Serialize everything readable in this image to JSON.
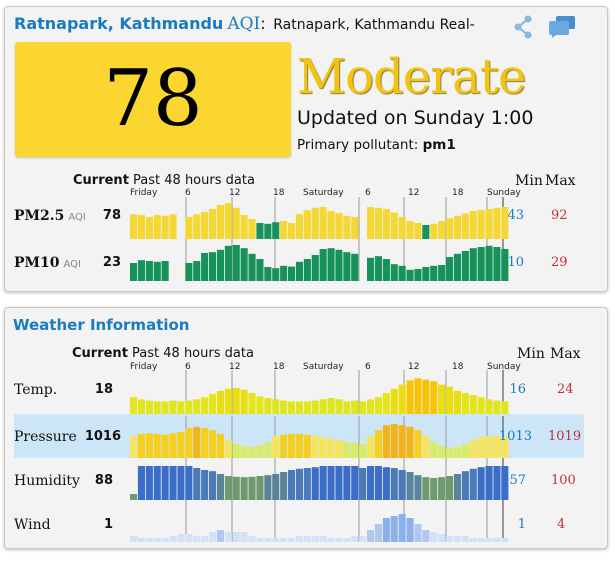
{
  "header": {
    "city": "Ratnapark, Kathmandu",
    "aqi_word": "AQI",
    "colon": ":",
    "station": "Ratnapark, Kathmandu Real-"
  },
  "aqi": {
    "value": "78",
    "level": "Moderate",
    "updated": "Updated on Sunday 1:00",
    "pollutant_label": "Primary pollutant:",
    "pollutant_value": "pm1",
    "box_color": "#fcd630"
  },
  "table_headers": {
    "current": "Current",
    "past": "Past 48 hours data",
    "min": "Min",
    "max": "Max"
  },
  "time_ticks": [
    "Friday",
    "6",
    "12",
    "18",
    "Saturday",
    "6",
    "12",
    "18",
    "Sunday"
  ],
  "air": [
    {
      "name": "PM2.5",
      "unit": "AQI",
      "current": "78",
      "min": "43",
      "max": "92",
      "values": [
        62,
        60,
        55,
        60,
        58,
        62,
        0,
        55,
        62,
        68,
        75,
        85,
        90,
        78,
        60,
        50,
        40,
        38,
        42,
        45,
        40,
        62,
        72,
        78,
        80,
        70,
        65,
        58,
        55,
        0,
        80,
        78,
        75,
        66,
        55,
        45,
        40,
        35,
        38,
        45,
        52,
        58,
        64,
        70,
        72,
        75,
        78,
        80
      ],
      "colors": [
        "#f5d835",
        "#f5d835",
        "#f5d835",
        "#f5d835",
        "#f5d835",
        "#f5d835",
        "",
        "#f5d835",
        "#f5d835",
        "#f5d835",
        "#f5d835",
        "#f5d835",
        "#f5d835",
        "#f5d835",
        "#f5d835",
        "#f5d835",
        "#17925a",
        "#17925a",
        "#17925a",
        "#f5d835",
        "#f5d835",
        "#f5d835",
        "#f5d835",
        "#f5d835",
        "#f5d835",
        "#f5d835",
        "#f5d835",
        "#f5d835",
        "#f5d835",
        "",
        "#f5d835",
        "#f5d835",
        "#f5d835",
        "#f5d835",
        "#f5d835",
        "#f5d835",
        "#f5d835",
        "#17925a",
        "#f5d835",
        "#f5d835",
        "#f5d835",
        "#f5d835",
        "#f5d835",
        "#f5d835",
        "#f5d835",
        "#f5d835",
        "#f5d835",
        "#f5d835"
      ]
    },
    {
      "name": "PM10",
      "unit": "AQI",
      "current": "23",
      "min": "10",
      "max": "29",
      "values": [
        45,
        52,
        50,
        48,
        50,
        0,
        0,
        45,
        50,
        70,
        72,
        78,
        88,
        90,
        82,
        68,
        55,
        35,
        32,
        38,
        36,
        48,
        55,
        65,
        80,
        82,
        78,
        72,
        68,
        0,
        58,
        62,
        55,
        42,
        38,
        28,
        30,
        35,
        38,
        40,
        60,
        68,
        75,
        82,
        85,
        88,
        85,
        80
      ],
      "colors": "#17925a"
    }
  ],
  "weather": {
    "title": "Weather Information",
    "rows": [
      {
        "name": "Temp.",
        "current": "18",
        "min": "16",
        "max": "24",
        "values": [
          40,
          35,
          32,
          30,
          30,
          32,
          30,
          32,
          35,
          40,
          48,
          55,
          60,
          62,
          58,
          50,
          42,
          38,
          35,
          32,
          30,
          30,
          30,
          32,
          35,
          38,
          35,
          30,
          32,
          30,
          35,
          40,
          50,
          60,
          70,
          80,
          85,
          82,
          78,
          70,
          65,
          55,
          50,
          45,
          40,
          35,
          32,
          30
        ]
      },
      {
        "name": "Pressure",
        "current": "1016",
        "min": "1013",
        "max": "1019",
        "values": [
          55,
          60,
          62,
          60,
          58,
          62,
          65,
          75,
          78,
          75,
          70,
          60,
          45,
          35,
          30,
          28,
          32,
          40,
          55,
          58,
          60,
          60,
          58,
          55,
          52,
          48,
          45,
          40,
          38,
          35,
          55,
          70,
          82,
          85,
          82,
          78,
          70,
          55,
          40,
          30,
          25,
          28,
          35,
          45,
          52,
          55,
          55,
          52
        ]
      },
      {
        "name": "Humidity",
        "current": "88",
        "min": "57",
        "max": "100",
        "values": [
          15,
          85,
          85,
          85,
          85,
          85,
          85,
          85,
          80,
          75,
          72,
          65,
          60,
          58,
          57,
          58,
          60,
          62,
          65,
          70,
          75,
          78,
          80,
          82,
          85,
          85,
          85,
          85,
          85,
          80,
          85,
          85,
          82,
          80,
          75,
          70,
          62,
          57,
          55,
          57,
          60,
          65,
          72,
          78,
          82,
          85,
          85,
          85
        ]
      },
      {
        "name": "Wind",
        "current": "1",
        "min": "1",
        "max": "4",
        "values": [
          15,
          10,
          10,
          10,
          10,
          15,
          20,
          20,
          15,
          15,
          25,
          30,
          25,
          25,
          25,
          15,
          10,
          10,
          10,
          10,
          10,
          15,
          15,
          15,
          15,
          10,
          10,
          10,
          15,
          15,
          30,
          45,
          60,
          65,
          70,
          60,
          45,
          30,
          25,
          20,
          15,
          15,
          15,
          10,
          10,
          10,
          10,
          10
        ]
      }
    ]
  }
}
